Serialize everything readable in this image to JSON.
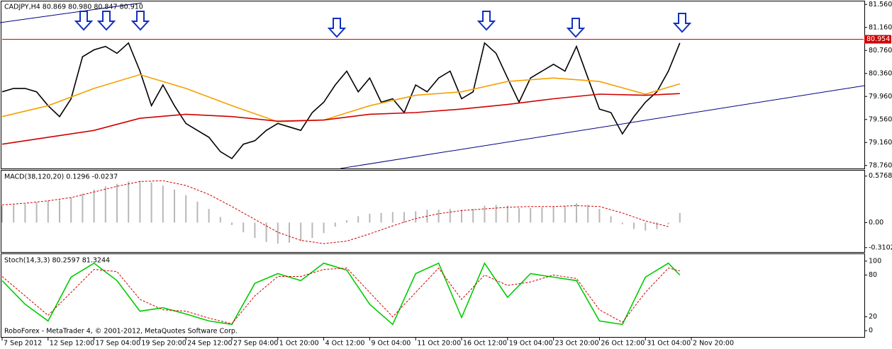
{
  "chart_data": [
    {
      "type": "line",
      "title": "CADJPY,H4 80.869 80.980 80.847 80.910",
      "xlim": [
        0,
        300
      ],
      "xticks": [
        {
          "value": 0,
          "label": "7 Sep 2012"
        },
        {
          "value": 16,
          "label": "12 Sep 12:00"
        },
        {
          "value": 32,
          "label": "17 Sep 04:00"
        },
        {
          "value": 48,
          "label": "19 Sep 20:00"
        },
        {
          "value": 64,
          "label": "24 Sep 12:00"
        },
        {
          "value": 80,
          "label": "27 Sep 04:00"
        },
        {
          "value": 96,
          "label": "1 Oct 20:00"
        },
        {
          "value": 112,
          "label": "4 Oct 12:00"
        },
        {
          "value": 128,
          "label": "9 Oct 04:00"
        },
        {
          "value": 144,
          "label": "11 Oct 20:00"
        },
        {
          "value": 160,
          "label": "16 Oct 12:00"
        },
        {
          "value": 176,
          "label": "19 Oct 04:00"
        },
        {
          "value": 192,
          "label": "23 Oct 20:00"
        },
        {
          "value": 208,
          "label": "26 Oct 12:00"
        },
        {
          "value": 224,
          "label": "31 Oct 04:00"
        },
        {
          "value": 240,
          "label": "2 Nov 20:00"
        }
      ],
      "ylim": [
        78.72,
        81.6
      ],
      "yticks": [
        {
          "value": 81.56,
          "label": "81.560"
        },
        {
          "value": 81.16,
          "label": "81.160"
        },
        {
          "value": 80.76,
          "label": "80.760"
        },
        {
          "value": 80.36,
          "label": "80.360"
        },
        {
          "value": 79.96,
          "label": "79.960"
        },
        {
          "value": 79.56,
          "label": "79.560"
        },
        {
          "value": 79.16,
          "label": "79.160"
        },
        {
          "value": 78.76,
          "label": "78.760"
        }
      ],
      "current_price": 80.954,
      "current_color": "#d00000",
      "series": [
        {
          "color": "#000000",
          "style": "solid",
          "x": [
            0,
            4,
            8,
            12,
            16,
            20,
            24,
            28,
            32,
            36,
            40,
            44,
            48,
            52,
            56,
            60,
            64,
            68,
            72,
            76,
            80,
            84,
            88,
            92,
            96,
            100,
            104,
            108,
            112,
            116,
            120,
            124,
            128,
            132,
            136,
            140,
            144,
            148,
            152,
            156,
            160,
            164,
            168,
            172,
            176,
            180,
            184,
            188,
            192,
            196,
            200,
            204,
            208,
            212,
            216,
            220,
            224,
            228,
            232,
            236
          ],
          "values": [
            80.04,
            80.1,
            80.1,
            80.04,
            79.8,
            79.61,
            79.92,
            80.65,
            80.77,
            80.83,
            80.71,
            80.89,
            80.4,
            79.8,
            80.16,
            79.8,
            79.49,
            79.37,
            79.25,
            79.0,
            78.88,
            79.13,
            79.19,
            79.37,
            79.49,
            79.43,
            79.37,
            79.68,
            79.86,
            80.16,
            80.4,
            80.04,
            80.28,
            79.86,
            79.92,
            79.68,
            80.16,
            80.04,
            80.28,
            80.4,
            79.92,
            80.04,
            80.89,
            80.71,
            80.28,
            79.86,
            80.28,
            80.4,
            80.52,
            80.4,
            80.83,
            80.28,
            79.74,
            79.68,
            79.31,
            79.61,
            79.86,
            80.04,
            80.4,
            80.89
          ]
        },
        {
          "color": "#f5a000",
          "style": "solid",
          "x": [
            0,
            16,
            32,
            48,
            64,
            80,
            96,
            112,
            128,
            144,
            160,
            176,
            192,
            208,
            224,
            236
          ],
          "values": [
            79.61,
            79.8,
            80.1,
            80.34,
            80.1,
            79.8,
            79.52,
            79.55,
            79.8,
            79.98,
            80.04,
            80.22,
            80.28,
            80.22,
            80.0,
            80.18
          ]
        },
        {
          "color": "#d00000",
          "style": "solid",
          "x": [
            0,
            16,
            32,
            48,
            64,
            80,
            96,
            112,
            128,
            144,
            160,
            176,
            192,
            208,
            224,
            236
          ],
          "values": [
            79.13,
            79.25,
            79.37,
            79.58,
            79.65,
            79.61,
            79.53,
            79.55,
            79.65,
            79.68,
            79.74,
            79.82,
            79.92,
            80.0,
            79.98,
            80.01
          ]
        }
      ]
    },
    {
      "type": "line",
      "title": "MACD(38,120,20) 0.1296 -0.0237",
      "ylim": [
        -0.356,
        0.636
      ],
      "yticks": [
        0.5768,
        {
          "value": 0,
          "label": "0.00"
        },
        -0.3102
      ],
      "series": [
        {
          "color": "#b8b8b8",
          "style": "histogram",
          "x": [
            0,
            4,
            8,
            12,
            16,
            20,
            24,
            28,
            32,
            36,
            40,
            44,
            48,
            52,
            56,
            60,
            64,
            68,
            72,
            76,
            80,
            84,
            88,
            92,
            96,
            100,
            104,
            108,
            112,
            116,
            120,
            124,
            128,
            132,
            136,
            140,
            144,
            148,
            152,
            156,
            160,
            164,
            168,
            172,
            176,
            180,
            184,
            188,
            192,
            196,
            200,
            204,
            208,
            212,
            216,
            220,
            224,
            228,
            232,
            236
          ],
          "values": [
            0.21,
            0.22,
            0.23,
            0.25,
            0.27,
            0.28,
            0.31,
            0.36,
            0.41,
            0.45,
            0.48,
            0.51,
            0.52,
            0.5,
            0.46,
            0.41,
            0.34,
            0.26,
            0.17,
            0.07,
            -0.03,
            -0.12,
            -0.19,
            -0.24,
            -0.26,
            -0.25,
            -0.23,
            -0.19,
            -0.13,
            -0.05,
            0.03,
            0.08,
            0.11,
            0.12,
            0.13,
            0.13,
            0.14,
            0.16,
            0.16,
            0.17,
            0.16,
            0.17,
            0.21,
            0.22,
            0.21,
            0.18,
            0.18,
            0.19,
            0.2,
            0.21,
            0.24,
            0.22,
            0.17,
            0.08,
            -0.02,
            -0.08,
            -0.1,
            -0.08,
            -0.02,
            0.12
          ]
        },
        {
          "color": "#d00000",
          "style": "dashed",
          "x": [
            0,
            8,
            16,
            24,
            32,
            40,
            48,
            56,
            64,
            72,
            80,
            88,
            96,
            104,
            112,
            120,
            128,
            136,
            144,
            152,
            160,
            168,
            176,
            184,
            192,
            200,
            208,
            216,
            224,
            232
          ],
          "values": [
            0.22,
            0.24,
            0.27,
            0.31,
            0.38,
            0.45,
            0.51,
            0.52,
            0.46,
            0.35,
            0.2,
            0.04,
            -0.12,
            -0.22,
            -0.26,
            -0.23,
            -0.14,
            -0.04,
            0.05,
            0.11,
            0.15,
            0.17,
            0.19,
            0.2,
            0.2,
            0.21,
            0.2,
            0.12,
            0.02,
            -0.05
          ]
        }
      ]
    },
    {
      "type": "line",
      "title": "Stoch(14,3,3) 80.2597 81.3244",
      "footer": "RoboForex - MetaTrader 4, © 2001-2012, MetaQuotes Software Corp.",
      "ylim": [
        -8,
        109
      ],
      "yticks": [
        100,
        80,
        20,
        0
      ],
      "series": [
        {
          "color": "#00cc00",
          "style": "solid",
          "x": [
            0,
            8,
            16,
            24,
            32,
            40,
            48,
            56,
            64,
            72,
            80,
            88,
            96,
            104,
            112,
            120,
            128,
            136,
            144,
            152,
            160,
            168,
            176,
            184,
            192,
            200,
            208,
            216,
            224,
            232,
            236
          ],
          "values": [
            72,
            38,
            14,
            77,
            97,
            72,
            28,
            33,
            24,
            14,
            9,
            68,
            82,
            72,
            97,
            87,
            38,
            9,
            82,
            97,
            19,
            97,
            48,
            82,
            77,
            72,
            14,
            9,
            77,
            97,
            80
          ]
        },
        {
          "color": "#d00000",
          "style": "dashed",
          "x": [
            0,
            8,
            16,
            24,
            32,
            40,
            48,
            56,
            64,
            72,
            80,
            88,
            96,
            104,
            112,
            120,
            128,
            136,
            144,
            152,
            160,
            168,
            176,
            184,
            192,
            200,
            208,
            216,
            224,
            232,
            236
          ],
          "values": [
            78,
            50,
            22,
            55,
            88,
            85,
            45,
            30,
            28,
            18,
            10,
            50,
            78,
            78,
            88,
            90,
            55,
            20,
            55,
            90,
            45,
            80,
            65,
            70,
            80,
            75,
            30,
            12,
            55,
            90,
            86
          ]
        }
      ]
    }
  ]
}
